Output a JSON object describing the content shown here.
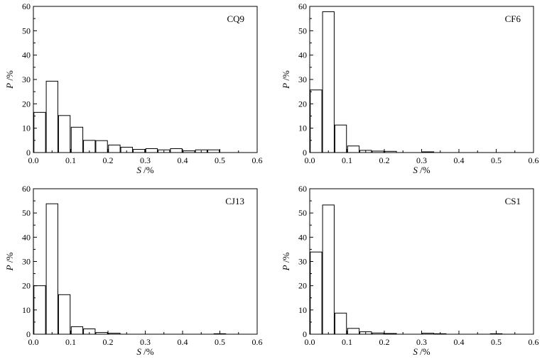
{
  "chart_data": [
    {
      "type": "bar",
      "title": "CQ9",
      "xlabel_var": "S",
      "xlabel_unit": " /%",
      "ylabel_var": "P",
      "ylabel_unit": " /%",
      "xlim": [
        0,
        0.6
      ],
      "ylim": [
        0,
        60
      ],
      "x_ticks": [
        "0.0",
        "0.1",
        "0.2",
        "0.3",
        "0.4",
        "0.5",
        "0.6"
      ],
      "y_ticks": [
        "0",
        "10",
        "20",
        "30",
        "40",
        "50",
        "60"
      ],
      "bin_width": 0.033,
      "x": [
        0.017,
        0.05,
        0.083,
        0.117,
        0.15,
        0.183,
        0.217,
        0.25,
        0.283,
        0.317,
        0.35,
        0.383,
        0.417,
        0.45,
        0.483,
        0.517,
        0.55,
        0.583
      ],
      "values": [
        16.5,
        29.3,
        15.2,
        10.4,
        5.0,
        4.9,
        3.1,
        2.2,
        1.3,
        1.6,
        1.1,
        1.6,
        0.7,
        1.1,
        1.1,
        0,
        0,
        0
      ]
    },
    {
      "type": "bar",
      "title": "CF6",
      "xlabel_var": "S",
      "xlabel_unit": " /%",
      "ylabel_var": "P",
      "ylabel_unit": " /%",
      "xlim": [
        0,
        0.6
      ],
      "ylim": [
        0,
        60
      ],
      "x_ticks": [
        "0.0",
        "0.1",
        "0.2",
        "0.3",
        "0.4",
        "0.5",
        "0.6"
      ],
      "y_ticks": [
        "0",
        "10",
        "20",
        "30",
        "40",
        "50",
        "60"
      ],
      "bin_width": 0.033,
      "x": [
        0.017,
        0.05,
        0.083,
        0.117,
        0.15,
        0.183,
        0.217,
        0.25,
        0.283,
        0.317,
        0.35
      ],
      "values": [
        25.7,
        57.8,
        11.3,
        2.7,
        0.9,
        0.6,
        0.5,
        0,
        0,
        0.3,
        0
      ]
    },
    {
      "type": "bar",
      "title": "CJ13",
      "xlabel_var": "S",
      "xlabel_unit": " /%",
      "ylabel_var": "P",
      "ylabel_unit": " /%",
      "xlim": [
        0,
        0.6
      ],
      "ylim": [
        0,
        60
      ],
      "x_ticks": [
        "0.0",
        "0.1",
        "0.2",
        "0.3",
        "0.4",
        "0.5",
        "0.6"
      ],
      "y_ticks": [
        "0",
        "10",
        "20",
        "30",
        "40",
        "50",
        "60"
      ],
      "bin_width": 0.033,
      "x": [
        0.017,
        0.05,
        0.083,
        0.117,
        0.15,
        0.183,
        0.217,
        0.25,
        0.5
      ],
      "values": [
        20.0,
        53.8,
        16.3,
        3.1,
        2.2,
        0.7,
        0.4,
        0,
        0.2
      ]
    },
    {
      "type": "bar",
      "title": "CS1",
      "xlabel_var": "S",
      "xlabel_unit": " /%",
      "ylabel_var": "P",
      "ylabel_unit": " /%",
      "xlim": [
        0,
        0.6
      ],
      "ylim": [
        0,
        60
      ],
      "x_ticks": [
        "0.0",
        "0.1",
        "0.2",
        "0.3",
        "0.4",
        "0.5",
        "0.6"
      ],
      "y_ticks": [
        "0",
        "10",
        "20",
        "30",
        "40",
        "50",
        "60"
      ],
      "bin_width": 0.033,
      "x": [
        0.017,
        0.05,
        0.083,
        0.117,
        0.15,
        0.183,
        0.217,
        0.25,
        0.283,
        0.317,
        0.35,
        0.383,
        0.5
      ],
      "values": [
        33.9,
        53.3,
        8.7,
        2.4,
        1.0,
        0.5,
        0.3,
        0,
        0,
        0.4,
        0.2,
        0,
        0.2
      ]
    }
  ]
}
